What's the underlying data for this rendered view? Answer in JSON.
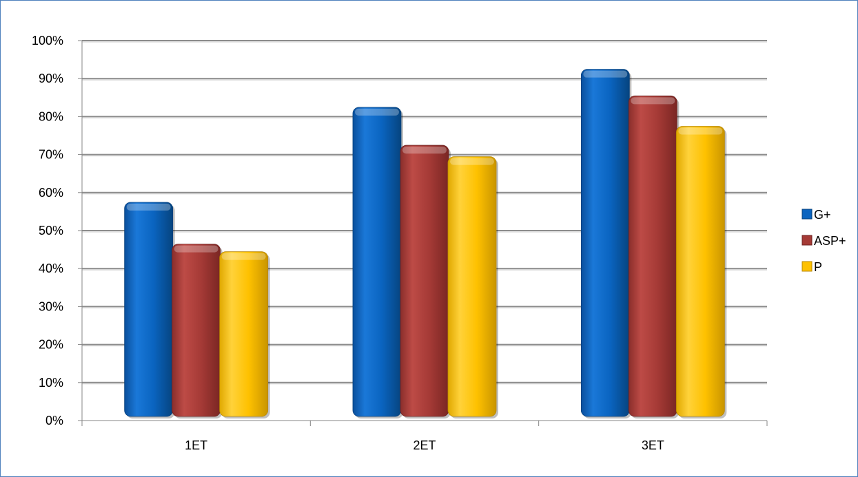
{
  "chart_data": {
    "type": "bar",
    "categories": [
      "1ET",
      "2ET",
      "3ET"
    ],
    "series": [
      {
        "name": "G+",
        "values": [
          56,
          81,
          91
        ]
      },
      {
        "name": "ASP+",
        "values": [
          45,
          71,
          84
        ]
      },
      {
        "name": "P",
        "values": [
          43,
          68,
          76
        ]
      }
    ],
    "colors": [
      "#0a64c0",
      "#a53a36",
      "#fec100"
    ],
    "ylim": [
      0,
      100
    ],
    "yticks": [
      "0%",
      "10%",
      "20%",
      "30%",
      "40%",
      "50%",
      "60%",
      "70%",
      "80%",
      "90%",
      "100%"
    ],
    "title": "",
    "xlabel": "",
    "ylabel": "",
    "grid": true,
    "legend_position": "right"
  }
}
